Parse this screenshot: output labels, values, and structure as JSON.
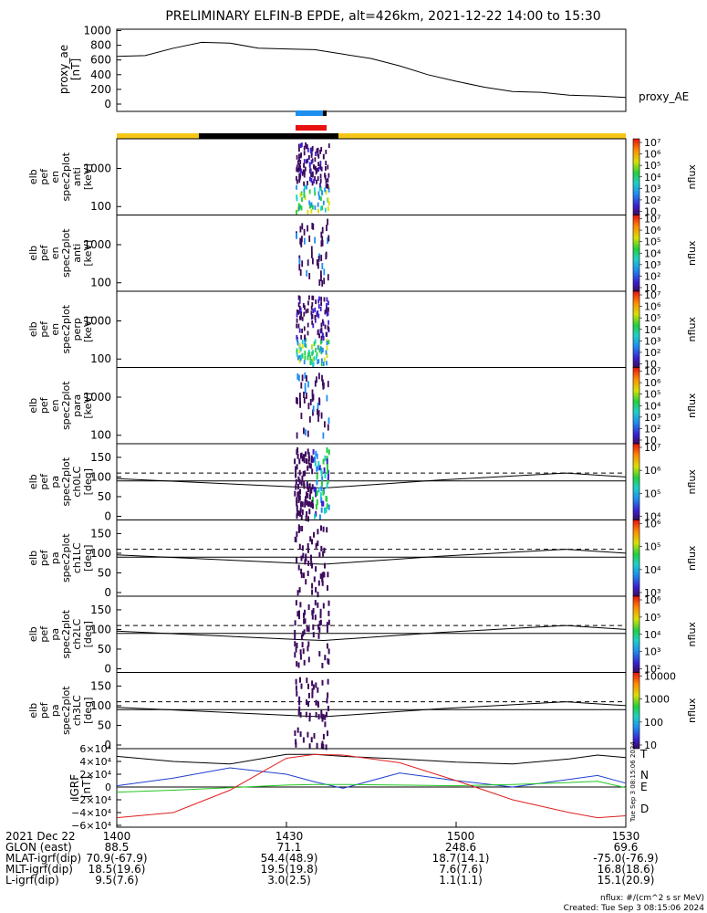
{
  "title": "PRELIMINARY ELFIN-B EPDE, alt=426km, 2021-12-22 14:00 to 15:30",
  "proxy_ae": {
    "ylabel": [
      "proxy_ae",
      "[nT]"
    ],
    "yticks": [
      "1000",
      "800",
      "600",
      "400",
      "200",
      "0"
    ],
    "legend": "proxy_AE"
  },
  "spectra_panels": [
    {
      "label": [
        "elb",
        "pef",
        "en",
        "spec2plot",
        "anti",
        "[keV]"
      ],
      "yticks": [
        "1000",
        "100"
      ],
      "cbar": [
        "10⁷",
        "10⁶",
        "10⁵",
        "10⁴",
        "10³",
        "10²",
        "10"
      ],
      "cbar_title": "nflux"
    },
    {
      "label": [
        "elb",
        "pef",
        "en",
        "spec2plot",
        "anti",
        "[keV]"
      ],
      "yticks": [
        "1000",
        "100"
      ],
      "cbar": [
        "10⁷",
        "10⁶",
        "10⁵",
        "10⁴",
        "10³",
        "10²",
        "10"
      ],
      "cbar_title": "nflux"
    },
    {
      "label": [
        "elb",
        "pef",
        "en",
        "spec2plot",
        "perp",
        "[keV]"
      ],
      "yticks": [
        "1000",
        "100"
      ],
      "cbar": [
        "10⁷",
        "10⁶",
        "10⁵",
        "10⁴",
        "10³",
        "10²",
        "10"
      ],
      "cbar_title": "nflux"
    },
    {
      "label": [
        "elb",
        "pef",
        "en",
        "spec2plot",
        "para",
        "[keV]"
      ],
      "yticks": [
        "1000",
        "100"
      ],
      "cbar": [
        "10⁷",
        "10⁶",
        "10⁵",
        "10⁴",
        "10³",
        "10²",
        "10"
      ],
      "cbar_title": "nflux"
    }
  ],
  "pa_panels": [
    {
      "label": [
        "elb",
        "pef",
        "pa",
        "spec2plot",
        "ch0LC",
        "[deg]"
      ],
      "yticks": [
        "150",
        "100",
        "50",
        "0"
      ],
      "cbar": [
        "10⁷",
        "10⁶",
        "10⁵",
        "10⁴"
      ],
      "cbar_title": "nflux"
    },
    {
      "label": [
        "elb",
        "pef",
        "pa",
        "spec2plot",
        "ch1LC",
        "[deg]"
      ],
      "yticks": [
        "150",
        "100",
        "50",
        "0"
      ],
      "cbar": [
        "10⁶",
        "10⁵",
        "10⁴",
        "10³"
      ],
      "cbar_title": "nflux"
    },
    {
      "label": [
        "elb",
        "pef",
        "pa",
        "spec2plot",
        "ch2LC",
        "[deg]"
      ],
      "yticks": [
        "150",
        "100",
        "50",
        "0"
      ],
      "cbar": [
        "10⁶",
        "10⁵",
        "10⁴",
        "10³",
        "10²"
      ],
      "cbar_title": "nflux"
    },
    {
      "label": [
        "elb",
        "pef",
        "pa",
        "spec2plot",
        "ch3LC",
        "[deg]"
      ],
      "yticks": [
        "150",
        "100",
        "50",
        "0"
      ],
      "cbar": [
        "10000",
        "1000",
        "100",
        "10"
      ],
      "cbar_title": "nflux"
    }
  ],
  "igrf": {
    "ylabel": [
      "IGRF",
      "[nT]"
    ],
    "yticks": [
      "6×10⁴",
      "4×10⁴",
      "2×10⁴",
      "0",
      "−2×10⁴",
      "−4×10⁴",
      "−6×10⁴"
    ],
    "legend": [
      {
        "name": "T",
        "color": "#000000"
      },
      {
        "name": "N",
        "color": "#1f3fd0"
      },
      {
        "name": "E",
        "color": "#22c822"
      },
      {
        "name": "D",
        "color": "#e02020"
      }
    ]
  },
  "side_stamp": "Tue Sep  3 08:15:06 2024",
  "xaxis": {
    "rows": [
      [
        "2021 Dec 22",
        "1400",
        "1430",
        "1500",
        "1530"
      ],
      [
        "GLON (east)",
        "88.5",
        "71.1",
        "248.6",
        "69.6"
      ],
      [
        "MLAT-igrf(dip)",
        "70.9(-67.9)",
        "54.4(48.9)",
        "18.7(14.1)",
        "-75.0(-76.9)"
      ],
      [
        "MLT-igrf(dip)",
        "18.5(19.6)",
        "19.5(19.8)",
        "7.6(7.6)",
        "16.8(18.6)"
      ],
      [
        "L-igrf(dip)",
        "9.5(7.6)",
        "3.0(2.5)",
        "1.1(1.1)",
        "15.1(20.9)"
      ]
    ]
  },
  "footer": [
    "nflux: #/(cm^2 s sr MeV)",
    "Created: Tue Sep  3 08:15:06 2024"
  ],
  "chart_data": [
    {
      "type": "line",
      "name": "proxy_AE",
      "x": [
        "14:00",
        "14:05",
        "14:10",
        "14:15",
        "14:20",
        "14:25",
        "14:30",
        "14:35",
        "14:40",
        "14:45",
        "14:50",
        "14:55",
        "15:00",
        "15:05",
        "15:10",
        "15:15",
        "15:20",
        "15:25",
        "15:30"
      ],
      "y": [
        650,
        660,
        760,
        840,
        830,
        760,
        750,
        740,
        680,
        620,
        520,
        400,
        310,
        230,
        170,
        160,
        120,
        110,
        90
      ],
      "ylim": [
        0,
        1100
      ]
    },
    {
      "type": "line",
      "name": "igrf_components",
      "x": [
        "14:00",
        "14:10",
        "14:20",
        "14:30",
        "14:35",
        "14:40",
        "14:50",
        "15:00",
        "15:10",
        "15:20",
        "15:25",
        "15:30"
      ],
      "series": [
        {
          "name": "T",
          "values": [
            48000,
            40000,
            36000,
            51000,
            51000,
            48000,
            44000,
            39000,
            36000,
            44000,
            50000,
            46000
          ]
        },
        {
          "name": "N",
          "values": [
            2000,
            14000,
            30000,
            20000,
            8000,
            -2000,
            22000,
            10000,
            0,
            12000,
            18000,
            6000
          ]
        },
        {
          "name": "E",
          "values": [
            -8000,
            -5000,
            -1000,
            3000,
            4000,
            4000,
            3000,
            2000,
            4000,
            7000,
            9000,
            -1000
          ]
        },
        {
          "name": "D",
          "values": [
            -48000,
            -40000,
            -5000,
            45000,
            51000,
            50000,
            38000,
            10000,
            -20000,
            -40000,
            -48000,
            -45000
          ]
        }
      ],
      "ylim": [
        -60000,
        60000
      ]
    }
  ]
}
